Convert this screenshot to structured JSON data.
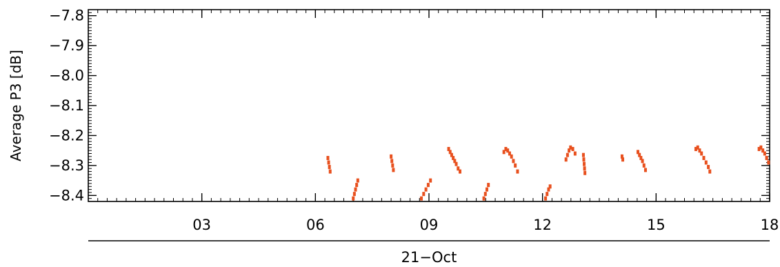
{
  "chart_data": {
    "type": "scatter",
    "title": "",
    "ylabel": "Average P3 [dB]",
    "xlabel": "",
    "date_label": "21−Oct",
    "x_unit": "hours",
    "xlim": [
      0,
      18
    ],
    "ylim": [
      -8.42,
      -7.78
    ],
    "x_ticks": [
      3,
      6,
      9,
      12,
      15,
      18
    ],
    "x_tick_labels": [
      "03",
      "06",
      "09",
      "12",
      "15",
      "18"
    ],
    "y_ticks": [
      -7.8,
      -7.9,
      -8.0,
      -8.1,
      -8.2,
      -8.3,
      -8.4
    ],
    "y_tick_labels": [
      "−7.8",
      "−7.9",
      "−8.0",
      "−8.1",
      "−8.2",
      "−8.3",
      "−8.4"
    ],
    "grid": false,
    "marker_color": "#e8501e",
    "series": [
      {
        "points": [
          [
            6.33,
            -8.275
          ],
          [
            6.35,
            -8.29
          ],
          [
            6.37,
            -8.305
          ],
          [
            6.39,
            -8.32
          ],
          [
            7.0,
            -8.41
          ],
          [
            7.03,
            -8.395
          ],
          [
            7.06,
            -8.38
          ],
          [
            7.09,
            -8.365
          ],
          [
            7.12,
            -8.35
          ],
          [
            8.0,
            -8.27
          ],
          [
            8.02,
            -8.285
          ],
          [
            8.04,
            -8.3
          ],
          [
            8.06,
            -8.315
          ],
          [
            8.8,
            -8.41
          ],
          [
            8.86,
            -8.395
          ],
          [
            8.92,
            -8.38
          ],
          [
            8.98,
            -8.365
          ],
          [
            9.04,
            -8.35
          ],
          [
            9.52,
            -8.245
          ],
          [
            9.56,
            -8.255
          ],
          [
            9.6,
            -8.265
          ],
          [
            9.64,
            -8.275
          ],
          [
            9.68,
            -8.285
          ],
          [
            9.72,
            -8.295
          ],
          [
            9.77,
            -8.31
          ],
          [
            9.82,
            -8.32
          ],
          [
            10.45,
            -8.41
          ],
          [
            10.49,
            -8.395
          ],
          [
            10.53,
            -8.38
          ],
          [
            10.57,
            -8.365
          ],
          [
            10.98,
            -8.255
          ],
          [
            11.03,
            -8.245
          ],
          [
            11.08,
            -8.25
          ],
          [
            11.13,
            -8.26
          ],
          [
            11.18,
            -8.27
          ],
          [
            11.23,
            -8.285
          ],
          [
            11.28,
            -8.3
          ],
          [
            11.34,
            -8.32
          ],
          [
            12.08,
            -8.41
          ],
          [
            12.12,
            -8.395
          ],
          [
            12.16,
            -8.38
          ],
          [
            12.2,
            -8.37
          ],
          [
            12.62,
            -8.28
          ],
          [
            12.66,
            -8.265
          ],
          [
            12.7,
            -8.25
          ],
          [
            12.74,
            -8.24
          ],
          [
            12.8,
            -8.245
          ],
          [
            12.86,
            -8.26
          ],
          [
            13.08,
            -8.265
          ],
          [
            13.09,
            -8.28
          ],
          [
            13.1,
            -8.295
          ],
          [
            13.11,
            -8.31
          ],
          [
            13.12,
            -8.325
          ],
          [
            14.1,
            -8.27
          ],
          [
            14.12,
            -8.28
          ],
          [
            14.52,
            -8.255
          ],
          [
            14.56,
            -8.265
          ],
          [
            14.6,
            -8.275
          ],
          [
            14.64,
            -8.285
          ],
          [
            14.68,
            -8.3
          ],
          [
            14.72,
            -8.315
          ],
          [
            16.05,
            -8.245
          ],
          [
            16.1,
            -8.24
          ],
          [
            16.15,
            -8.25
          ],
          [
            16.2,
            -8.26
          ],
          [
            16.26,
            -8.275
          ],
          [
            16.32,
            -8.29
          ],
          [
            16.38,
            -8.305
          ],
          [
            16.42,
            -8.32
          ],
          [
            17.72,
            -8.245
          ],
          [
            17.77,
            -8.24
          ],
          [
            17.82,
            -8.25
          ],
          [
            17.87,
            -8.26
          ],
          [
            17.92,
            -8.275
          ],
          [
            17.97,
            -8.29
          ]
        ]
      }
    ]
  }
}
